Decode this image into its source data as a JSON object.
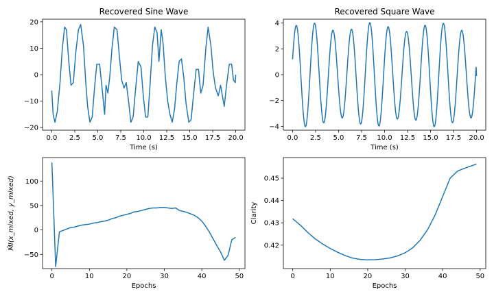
{
  "figure": {
    "background": "#ffffff",
    "line_color": "#1f77b4"
  },
  "chart_data": [
    {
      "type": "line",
      "title": "Recovered Sine Wave",
      "xlabel": "Time (s)",
      "ylabel": "",
      "xlim": [
        -1,
        21
      ],
      "ylim": [
        -21,
        21
      ],
      "xticks": [
        "0.0",
        "2.5",
        "5.0",
        "7.5",
        "10.0",
        "12.5",
        "15.0",
        "17.5",
        "20.0"
      ],
      "xtick_values": [
        0,
        2.5,
        5,
        7.5,
        10,
        12.5,
        15,
        17.5,
        20
      ],
      "yticks": [
        "−20",
        "−10",
        "0",
        "10",
        "20"
      ],
      "ytick_values": [
        -20,
        -10,
        0,
        10,
        20
      ],
      "grid": false,
      "series": [
        {
          "x": [
            0,
            0.15,
            0.35,
            0.6,
            0.9,
            1.15,
            1.4,
            1.6,
            1.85,
            2.1,
            2.35,
            2.6,
            2.9,
            3.15,
            3.45,
            3.7,
            3.9,
            4.15,
            4.4,
            4.65,
            4.9,
            5.2,
            5.5,
            5.75,
            5.9,
            6.1,
            6.3,
            6.55,
            6.8,
            7.1,
            7.35,
            7.6,
            7.85,
            8.1,
            8.35,
            8.6,
            8.85,
            9.1,
            9.4,
            9.7,
            9.95,
            10.2,
            10.45,
            10.7,
            10.95,
            11.2,
            11.45,
            11.65,
            11.9,
            12.1,
            12.35,
            12.6,
            12.85,
            13.1,
            13.35,
            13.6,
            13.85,
            14.1,
            14.35,
            14.6,
            14.9,
            15.15,
            15.4,
            15.7,
            15.95,
            16.2,
            16.45,
            16.75,
            17.0,
            17.3,
            17.55,
            17.8,
            18.1,
            18.35,
            18.55,
            18.75,
            19.0,
            19.3,
            19.55,
            19.75,
            19.95,
            20.0
          ],
          "y": [
            -6,
            -15,
            -18,
            -14,
            -3,
            10,
            18,
            17,
            5,
            -4,
            -3,
            8,
            17,
            19,
            11,
            -3,
            -12,
            -18,
            -16,
            -5,
            4,
            4,
            -6,
            -15,
            -4,
            -7,
            -1,
            10,
            18,
            17,
            7,
            -2,
            -5,
            -3,
            -10,
            -18,
            -16,
            -6,
            5,
            3,
            -8,
            -16,
            -16,
            -3,
            11,
            18,
            16,
            5,
            17,
            12,
            -1,
            -10,
            -15,
            -18,
            -13,
            -3,
            5,
            6,
            -1,
            -11,
            -18,
            -17,
            -8,
            2,
            2,
            -7,
            -4,
            10,
            18,
            11,
            1,
            -5,
            -8,
            -4,
            -8,
            -12,
            -4,
            4,
            4,
            -2,
            -3,
            0
          ]
        }
      ]
    },
    {
      "type": "line",
      "title": "Recovered Square Wave",
      "xlabel": "Time (s)",
      "ylabel": "",
      "xlim": [
        -1,
        21
      ],
      "ylim": [
        -4.3,
        4.3
      ],
      "xticks": [
        "0.0",
        "2.5",
        "5.0",
        "7.5",
        "10.0",
        "12.5",
        "15.0",
        "17.5",
        "20.0"
      ],
      "xtick_values": [
        0,
        2.5,
        5,
        7.5,
        10,
        12.5,
        15,
        17.5,
        20
      ],
      "yticks": [
        "−4",
        "−2",
        "0",
        "2",
        "4"
      ],
      "ytick_values": [
        -4,
        -2,
        0,
        2,
        4
      ],
      "grid": false,
      "wave": {
        "period": 2.0,
        "amplitude": 3.7,
        "phase_offset": 0.6,
        "end_value": -0.1
      },
      "series": [
        {
          "note": "oscillating wave, amplitude about 3.3 to 4.0, period about 2 s"
        }
      ]
    },
    {
      "type": "line",
      "title": "",
      "xlabel": "Epochs",
      "ylabel": "M̂I(x_mixed, y_mixed)",
      "xlim": [
        -2.5,
        51.5
      ],
      "ylim": [
        -79,
        148
      ],
      "xticks": [
        "0",
        "10",
        "20",
        "30",
        "40",
        "50"
      ],
      "xtick_values": [
        0,
        10,
        20,
        30,
        40,
        50
      ],
      "yticks": [
        "−50",
        "0",
        "50",
        "100"
      ],
      "ytick_values": [
        -50,
        0,
        50,
        100
      ],
      "grid": false,
      "series": [
        {
          "x": [
            0,
            1,
            2,
            3,
            4,
            5,
            6,
            7,
            8,
            9,
            10,
            11,
            12,
            13,
            14,
            15,
            16,
            17,
            18,
            19,
            20,
            21,
            22,
            23,
            24,
            25,
            26,
            27,
            28,
            29,
            30,
            31,
            32,
            33,
            34,
            35,
            36,
            37,
            38,
            39,
            40,
            41,
            42,
            43,
            44,
            45,
            46,
            47,
            48,
            49
          ],
          "y": [
            138,
            -75,
            -4,
            -1,
            2,
            5,
            6,
            8,
            10,
            11,
            12,
            14,
            15,
            17,
            18,
            20,
            23,
            25,
            28,
            30,
            32,
            34,
            37,
            38,
            40,
            42,
            44,
            45,
            45,
            46,
            46,
            45,
            44,
            45,
            40,
            38,
            36,
            33,
            30,
            25,
            18,
            8,
            -4,
            -18,
            -32,
            -45,
            -62,
            -52,
            -20,
            -15
          ]
        }
      ]
    },
    {
      "type": "line",
      "title": "",
      "xlabel": "Epochs",
      "ylabel": "Clarity",
      "xlim": [
        -2.5,
        51.5
      ],
      "ylim": [
        0.4095,
        0.4592
      ],
      "xticks": [
        "0",
        "10",
        "20",
        "30",
        "40",
        "50"
      ],
      "xtick_values": [
        0,
        10,
        20,
        30,
        40,
        50
      ],
      "yticks": [
        "0.42",
        "0.43",
        "0.44",
        "0.45"
      ],
      "ytick_values": [
        0.42,
        0.43,
        0.44,
        0.45
      ],
      "grid": false,
      "series": [
        {
          "x": [
            0,
            2,
            4,
            6,
            8,
            10,
            12,
            14,
            16,
            18,
            20,
            22,
            24,
            26,
            28,
            30,
            32,
            34,
            36,
            38,
            40,
            42,
            44,
            46,
            48,
            49
          ],
          "y": [
            0.4318,
            0.429,
            0.4257,
            0.4228,
            0.4205,
            0.4185,
            0.4168,
            0.4153,
            0.4142,
            0.4136,
            0.4134,
            0.4135,
            0.4138,
            0.4143,
            0.4152,
            0.4166,
            0.4188,
            0.4222,
            0.427,
            0.4335,
            0.4418,
            0.45,
            0.4532,
            0.4545,
            0.4557,
            0.4563
          ]
        }
      ]
    }
  ]
}
